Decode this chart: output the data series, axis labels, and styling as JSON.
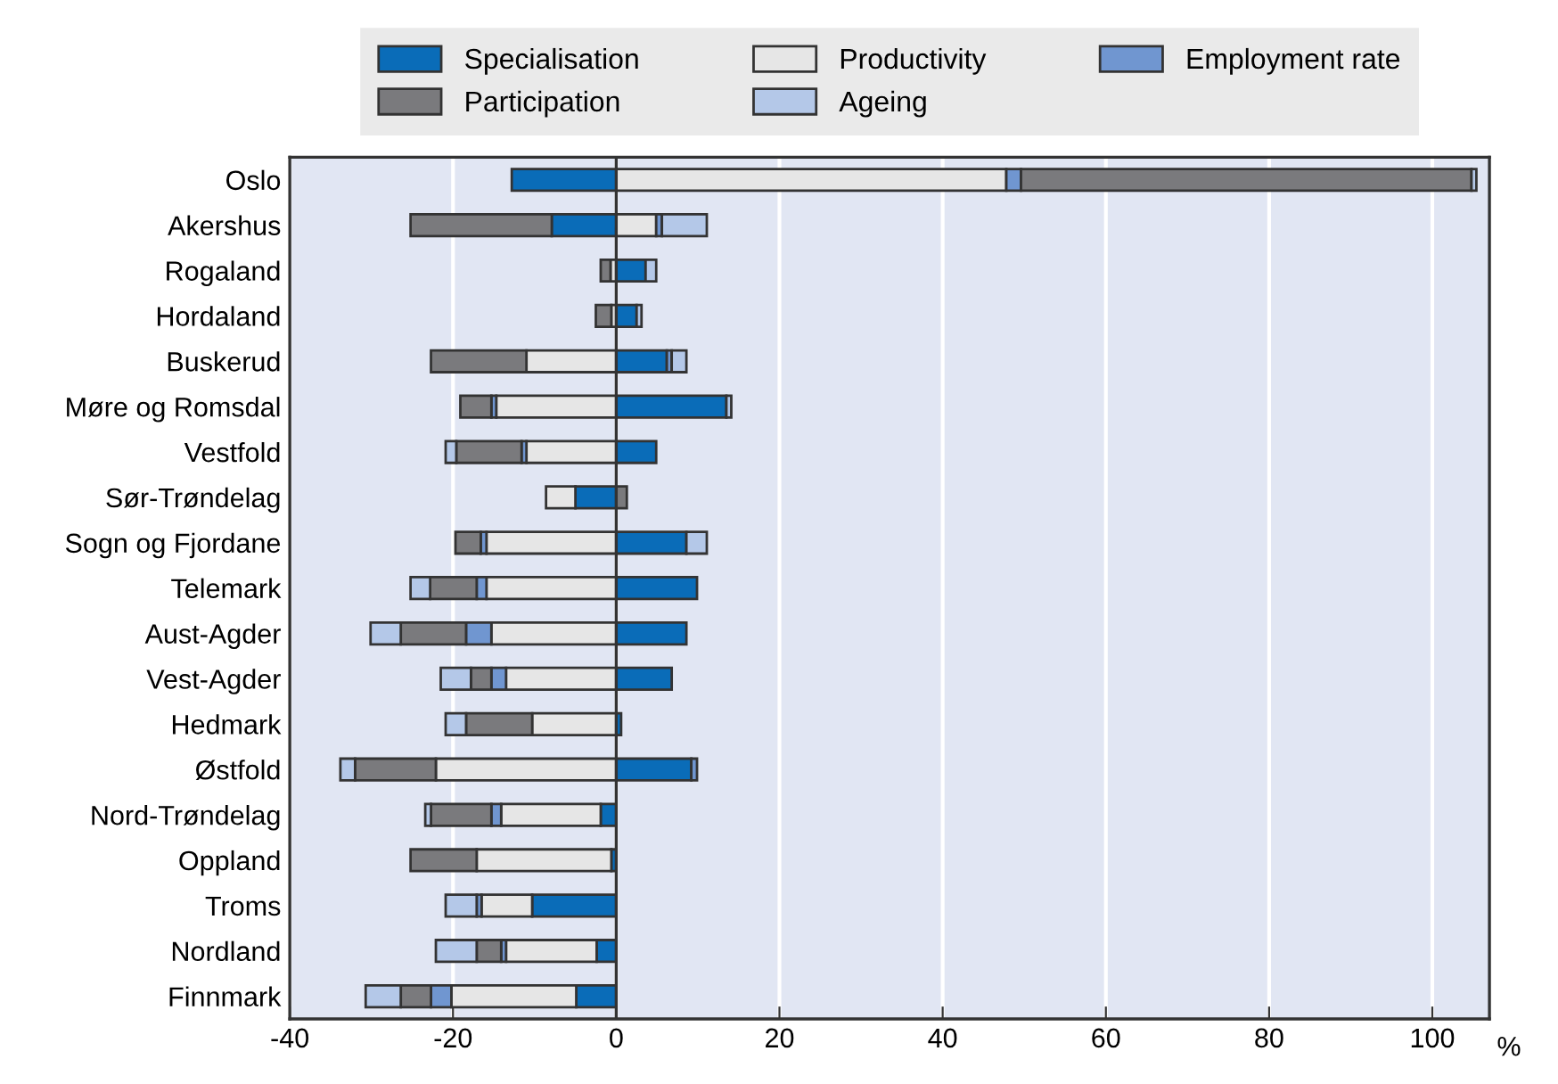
{
  "chart_data": {
    "type": "bar",
    "orientation": "horizontal",
    "stacked": true,
    "xlabel": "%",
    "categories": [
      "Oslo",
      "Akershus",
      "Rogaland",
      "Hordaland",
      "Buskerud",
      "Møre og Romsdal",
      "Vestfold",
      "Sør-Trøndelag",
      "Sogn og Fjordane",
      "Telemark",
      "Aust-Agder",
      "Vest-Agder",
      "Hedmark",
      "Østfold",
      "Nord-Trøndelag",
      "Oppland",
      "Troms",
      "Nordland",
      "Finnmark"
    ],
    "series": [
      {
        "name": "Specialisation",
        "color": "#0a6cb8",
        "values": [
          -12.8,
          -7.9,
          3.6,
          2.5,
          6.2,
          13.5,
          4.9,
          -5.0,
          8.6,
          9.9,
          8.6,
          6.8,
          0.6,
          9.2,
          -1.9,
          -0.6,
          -10.3,
          -2.4,
          -4.9
        ]
      },
      {
        "name": "Productivity",
        "color": "#e6e6e6",
        "values": [
          47.8,
          4.9,
          -0.7,
          -0.6,
          -11.0,
          -14.7,
          -11.0,
          -3.6,
          -15.9,
          -15.9,
          -15.3,
          -13.5,
          -10.3,
          -22.1,
          -12.2,
          -16.5,
          -6.2,
          -11.1,
          -15.3
        ]
      },
      {
        "name": "Employment rate",
        "color": "#7096d0",
        "values": [
          1.8,
          0.7,
          null,
          null,
          0.6,
          -0.6,
          -0.6,
          null,
          -0.7,
          -1.2,
          -3.1,
          -1.8,
          null,
          0.7,
          -1.2,
          null,
          -0.6,
          -0.6,
          -2.5
        ]
      },
      {
        "name": "Participation",
        "color": "#7a7a7d",
        "values": [
          55.2,
          -17.3,
          -1.2,
          -1.9,
          -11.7,
          -3.8,
          -8.0,
          1.3,
          -3.1,
          -5.7,
          -8.0,
          -2.5,
          -8.1,
          -9.9,
          -7.4,
          -8.1,
          null,
          -3.0,
          -3.7
        ]
      },
      {
        "name": "Ageing",
        "color": "#b4c8e8",
        "values": [
          0.6,
          5.5,
          1.3,
          0.6,
          1.8,
          0.6,
          -1.3,
          null,
          2.5,
          -2.4,
          -3.7,
          -3.7,
          -2.5,
          -1.8,
          -0.7,
          null,
          -3.8,
          -5.0,
          -4.3
        ]
      }
    ],
    "xlim": [
      -40,
      107
    ],
    "xticks": [
      -40,
      -20,
      0,
      20,
      40,
      60,
      80,
      100
    ],
    "grid": "x",
    "legend": "top"
  }
}
